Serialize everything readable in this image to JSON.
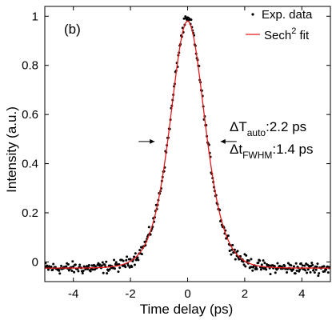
{
  "chart_data": {
    "type": "scatter",
    "panel_label": "(b)",
    "xlabel": "Time delay (ps)",
    "ylabel": "Intensity (a.u.)",
    "xlim": [
      -5,
      5
    ],
    "ylim": [
      -0.08,
      1.04
    ],
    "x_ticks": [
      -4,
      -2,
      0,
      2,
      4
    ],
    "x_tick_labels": [
      "-4",
      "-2",
      "0",
      "2",
      "4"
    ],
    "y_ticks": [
      0,
      0.2,
      0.4,
      0.6,
      0.8,
      1
    ],
    "y_tick_labels": [
      "0",
      "0.2",
      "0.4",
      "0.6",
      "0.8",
      "1"
    ],
    "grid": false,
    "legend_position": "top-right",
    "series": [
      {
        "name": "Exp. data",
        "kind": "scatter",
        "color": "#000000",
        "shape": "sech2",
        "baseline": -0.025,
        "amplitude": 1.01,
        "center": 0,
        "auto_fwhm_ps": 2.2,
        "x_range": [
          -5,
          5
        ],
        "x_step": 0.025,
        "noise": 0.012
      },
      {
        "name": "Sech",
        "name_superscript": "2",
        "name_suffix": " fit",
        "kind": "line",
        "color": "#e41a1c",
        "shape": "sech2",
        "baseline": -0.025,
        "amplitude": 1.005,
        "center": 0,
        "auto_fwhm_ps": 2.2,
        "x_range": [
          -5,
          5
        ]
      }
    ],
    "annotations": {
      "fwhm_level": 0.49,
      "fwhm_left_x": -1.1,
      "fwhm_right_x": 1.1,
      "auto_label_main": "ΔT",
      "auto_label_sub": "auto",
      "auto_label_value": ":2.2 ps",
      "pulse_label_main": "Δt",
      "pulse_label_sub": "FWHM",
      "pulse_label_value": ":1.4 ps"
    }
  }
}
